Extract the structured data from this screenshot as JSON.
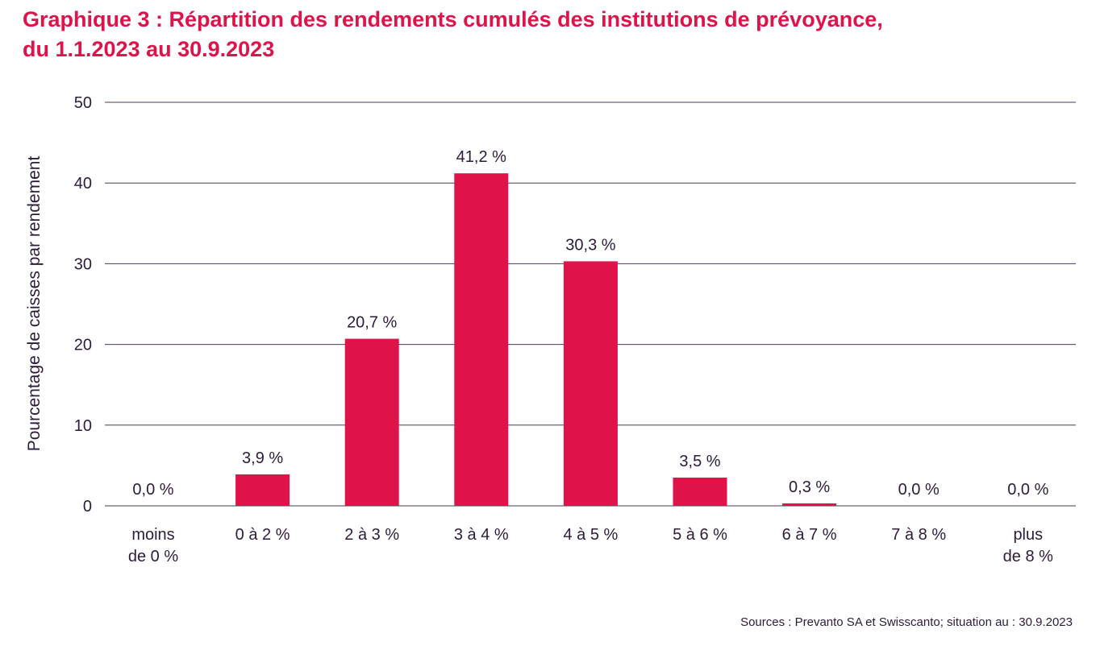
{
  "header": {
    "title_line1": "Graphique 3 : Répartition des rendements cumulés des institutions de prévoyance,",
    "title_line2": "du 1.1.2023 au 30.9.2023"
  },
  "footer": {
    "source": "Sources : Prevanto SA et Swisscanto; situation au : 30.9.2023"
  },
  "colors": {
    "bar": "#e0124a",
    "title": "#e0124a",
    "text": "#2d1b3a",
    "grid": "#4a3a5a"
  },
  "chart_data": {
    "type": "bar",
    "title": "Graphique 3 : Répartition des rendements cumulés des institutions de prévoyance, du 1.1.2023 au 30.9.2023",
    "xlabel": "",
    "ylabel": "Pourcentage de caisses par rendement",
    "ylim": [
      0,
      50
    ],
    "yticks": [
      0,
      10,
      20,
      30,
      40,
      50
    ],
    "grid": true,
    "legend": "none",
    "categories": [
      [
        "moins",
        "de 0 %"
      ],
      [
        "0 à 2 %"
      ],
      [
        "2 à 3 %"
      ],
      [
        "3 à 4 %"
      ],
      [
        "4 à 5 %"
      ],
      [
        "5 à 6 %"
      ],
      [
        "6 à 7 %"
      ],
      [
        "7 à 8 %"
      ],
      [
        "plus",
        "de 8 %"
      ]
    ],
    "values": [
      0.0,
      3.9,
      20.7,
      41.2,
      30.3,
      3.5,
      0.3,
      0.0,
      0.0
    ],
    "value_labels": [
      "0,0 %",
      "3,9 %",
      "20,7 %",
      "41,2 %",
      "30,3 %",
      "3,5 %",
      "0,3 %",
      "0,0 %",
      "0,0 %"
    ]
  }
}
